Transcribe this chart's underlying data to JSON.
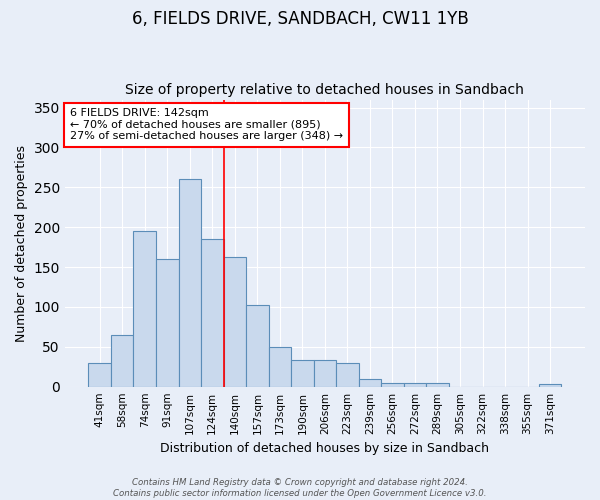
{
  "title": "6, FIELDS DRIVE, SANDBACH, CW11 1YB",
  "subtitle": "Size of property relative to detached houses in Sandbach",
  "xlabel": "Distribution of detached houses by size in Sandbach",
  "ylabel": "Number of detached properties",
  "categories": [
    "41sqm",
    "58sqm",
    "74sqm",
    "91sqm",
    "107sqm",
    "124sqm",
    "140sqm",
    "157sqm",
    "173sqm",
    "190sqm",
    "206sqm",
    "223sqm",
    "239sqm",
    "256sqm",
    "272sqm",
    "289sqm",
    "305sqm",
    "322sqm",
    "338sqm",
    "355sqm",
    "371sqm"
  ],
  "values": [
    30,
    65,
    195,
    160,
    260,
    185,
    163,
    102,
    50,
    33,
    33,
    30,
    10,
    4,
    4,
    5,
    0,
    0,
    0,
    0,
    3
  ],
  "bar_color": "#c9d9ed",
  "bar_edge_color": "#5b8db8",
  "background_color": "#e8eef8",
  "grid_color": "#ffffff",
  "vline_x_index": 6,
  "vline_color": "red",
  "annotation_line1": "6 FIELDS DRIVE: 142sqm",
  "annotation_line2": "← 70% of detached houses are smaller (895)",
  "annotation_line3": "27% of semi-detached houses are larger (348) →",
  "annotation_box_color": "white",
  "annotation_box_edge": "red",
  "footer_text": "Contains HM Land Registry data © Crown copyright and database right 2024.\nContains public sector information licensed under the Open Government Licence v3.0.",
  "ylim": [
    0,
    360
  ],
  "title_fontsize": 12,
  "subtitle_fontsize": 10,
  "annotation_fontsize": 8,
  "ylabel_fontsize": 9,
  "xlabel_fontsize": 9
}
